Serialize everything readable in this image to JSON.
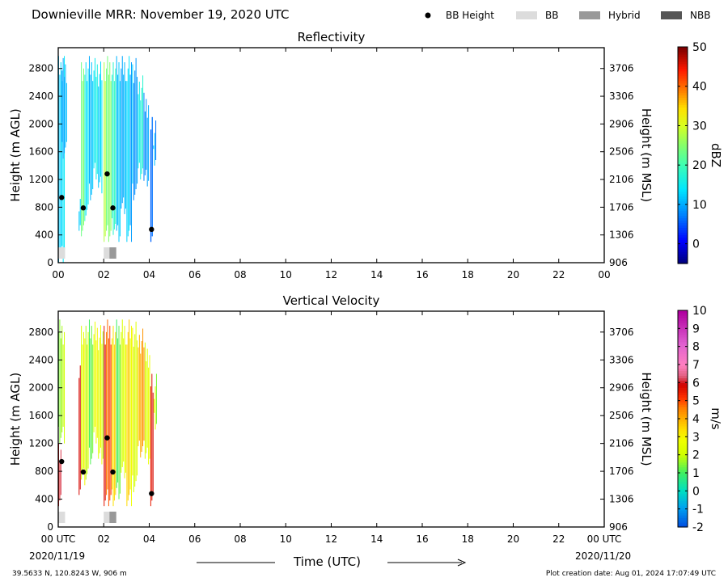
{
  "title": "Downieville MRR:  November 19, 2020 UTC",
  "legend": [
    {
      "label": "BB Height",
      "kind": "dot",
      "color": "#000000"
    },
    {
      "label": "BB",
      "kind": "box",
      "color": "#dcdcdc"
    },
    {
      "label": "Hybrid",
      "kind": "box",
      "color": "#999999"
    },
    {
      "label": "NBB",
      "kind": "box",
      "color": "#555555"
    }
  ],
  "xaxis": {
    "label": "Time (UTC)",
    "tick_labels": [
      "00",
      "02",
      "04",
      "06",
      "08",
      "10",
      "12",
      "14",
      "16",
      "18",
      "20",
      "22",
      "00"
    ],
    "bottom_tick_labels": [
      "00 UTC",
      "02",
      "04",
      "06",
      "08",
      "10",
      "12",
      "14",
      "16",
      "18",
      "20",
      "22",
      "00 UTC"
    ],
    "start_date": "2020/11/19",
    "end_date": "2020/11/20"
  },
  "left_axis": {
    "label": "Height (m AGL)",
    "ticks": [
      0,
      400,
      800,
      1200,
      1600,
      2000,
      2400,
      2800
    ]
  },
  "right_axis": {
    "label": "Height (m MSL)",
    "ticks": [
      906,
      1306,
      1706,
      2106,
      2506,
      2906,
      3306,
      3706
    ]
  },
  "footer": {
    "location": "39.5633 N, 120.8243 W, 906 m",
    "created": "Plot creation date: Aug 01, 2024 17:07:49 UTC"
  },
  "colors": {
    "bb_height": "#000000",
    "bb": "#dcdcdc",
    "hybrid": "#999999",
    "nbb": "#555555"
  },
  "chart_data": [
    {
      "type": "heatmap",
      "title": "Reflectivity",
      "xlabel": "",
      "ylabel": "Height (m AGL)",
      "y2label": "Height (m MSL)",
      "xlim": [
        0,
        24
      ],
      "ylim": [
        0,
        3100
      ],
      "colorbar": {
        "label": "dBZ",
        "ticks": [
          0,
          10,
          20,
          30,
          40,
          50
        ],
        "range": [
          -5,
          50
        ]
      },
      "bb_height": [
        {
          "x": 0.15,
          "y": 940
        },
        {
          "x": 1.1,
          "y": 790
        },
        {
          "x": 2.15,
          "y": 1280
        },
        {
          "x": 2.4,
          "y": 790
        },
        {
          "x": 4.1,
          "y": 480
        }
      ],
      "bb_types": [
        {
          "start": 0.0,
          "end": 0.3,
          "type": "BB"
        },
        {
          "start": 2.0,
          "end": 2.25,
          "type": "BB"
        },
        {
          "start": 2.25,
          "end": 2.55,
          "type": "Hybrid"
        }
      ],
      "columns": [
        {
          "t": 0.0,
          "w": 0.3,
          "top": 2980,
          "bottom": 0,
          "value": 14
        },
        {
          "t": 0.15,
          "w": 0.25,
          "top": 2950,
          "bottom": 1500,
          "value": 10
        },
        {
          "t": 0.9,
          "w": 0.1,
          "top": 1100,
          "bottom": 300,
          "value": 12
        },
        {
          "t": 1.0,
          "w": 0.15,
          "top": 2980,
          "bottom": 300,
          "value": 22
        },
        {
          "t": 1.15,
          "w": 0.2,
          "top": 2980,
          "bottom": 600,
          "value": 16
        },
        {
          "t": 1.35,
          "w": 0.2,
          "top": 2980,
          "bottom": 900,
          "value": 12
        },
        {
          "t": 1.55,
          "w": 0.2,
          "top": 2950,
          "bottom": 1200,
          "value": 15
        },
        {
          "t": 1.75,
          "w": 0.2,
          "top": 2900,
          "bottom": 1000,
          "value": 11
        },
        {
          "t": 2.0,
          "w": 0.35,
          "top": 2980,
          "bottom": 300,
          "value": 26
        },
        {
          "t": 2.35,
          "w": 0.2,
          "top": 2980,
          "bottom": 400,
          "value": 20
        },
        {
          "t": 2.55,
          "w": 0.2,
          "top": 2980,
          "bottom": 300,
          "value": 12
        },
        {
          "t": 2.75,
          "w": 0.25,
          "top": 2980,
          "bottom": 700,
          "value": 9
        },
        {
          "t": 3.0,
          "w": 0.25,
          "top": 2980,
          "bottom": 300,
          "value": 11
        },
        {
          "t": 3.25,
          "w": 0.25,
          "top": 2950,
          "bottom": 900,
          "value": 10
        },
        {
          "t": 3.5,
          "w": 0.25,
          "top": 2700,
          "bottom": 1200,
          "value": 17
        },
        {
          "t": 3.75,
          "w": 0.25,
          "top": 2450,
          "bottom": 1100,
          "value": 8
        },
        {
          "t": 4.05,
          "w": 0.12,
          "top": 2100,
          "bottom": 300,
          "value": 5
        },
        {
          "t": 4.17,
          "w": 0.15,
          "top": 2050,
          "bottom": 1400,
          "value": 9
        }
      ]
    },
    {
      "type": "heatmap",
      "title": "Vertical Velocity",
      "xlabel": "",
      "ylabel": "Height (m AGL)",
      "y2label": "Height (m MSL)",
      "xlim": [
        0,
        24
      ],
      "ylim": [
        0,
        3100
      ],
      "colorbar": {
        "label": "m/s",
        "ticks": [
          -2,
          -1,
          0,
          1,
          2,
          3,
          4,
          5,
          6,
          7,
          8,
          9,
          10
        ],
        "range": [
          -2,
          10
        ]
      },
      "bb_height": [
        {
          "x": 0.15,
          "y": 940
        },
        {
          "x": 1.1,
          "y": 790
        },
        {
          "x": 2.15,
          "y": 1280
        },
        {
          "x": 2.4,
          "y": 790
        },
        {
          "x": 4.1,
          "y": 480
        }
      ],
      "bb_types": [
        {
          "start": 0.0,
          "end": 0.3,
          "type": "BB"
        },
        {
          "start": 2.0,
          "end": 2.25,
          "type": "BB"
        },
        {
          "start": 2.25,
          "end": 2.55,
          "type": "Hybrid"
        }
      ],
      "columns": [
        {
          "t": 0.0,
          "w": 0.15,
          "top": 1200,
          "bottom": 300,
          "value": 6.5
        },
        {
          "t": 0.0,
          "w": 0.3,
          "top": 2980,
          "bottom": 1200,
          "value": 1.6
        },
        {
          "t": 0.9,
          "w": 0.1,
          "top": 2500,
          "bottom": 300,
          "value": 5.8
        },
        {
          "t": 1.0,
          "w": 0.15,
          "top": 2980,
          "bottom": 600,
          "value": 2.0
        },
        {
          "t": 1.15,
          "w": 0.2,
          "top": 2980,
          "bottom": 600,
          "value": 2.4
        },
        {
          "t": 1.35,
          "w": 0.2,
          "top": 2980,
          "bottom": 900,
          "value": 1.4
        },
        {
          "t": 1.55,
          "w": 0.2,
          "top": 2950,
          "bottom": 1200,
          "value": 2.7
        },
        {
          "t": 1.75,
          "w": 0.25,
          "top": 2900,
          "bottom": 900,
          "value": 2.2
        },
        {
          "t": 2.0,
          "w": 0.35,
          "top": 2980,
          "bottom": 300,
          "value": 5.2
        },
        {
          "t": 2.35,
          "w": 0.2,
          "top": 2980,
          "bottom": 300,
          "value": 3.8
        },
        {
          "t": 2.55,
          "w": 0.2,
          "top": 2980,
          "bottom": 400,
          "value": 1.2
        },
        {
          "t": 2.75,
          "w": 0.25,
          "top": 2980,
          "bottom": 700,
          "value": 2.1
        },
        {
          "t": 3.0,
          "w": 0.25,
          "top": 2980,
          "bottom": 300,
          "value": 3.2
        },
        {
          "t": 3.25,
          "w": 0.25,
          "top": 2950,
          "bottom": 500,
          "value": 2.6
        },
        {
          "t": 3.5,
          "w": 0.3,
          "top": 2850,
          "bottom": 1000,
          "value": 4.2
        },
        {
          "t": 3.8,
          "w": 0.25,
          "top": 2650,
          "bottom": 900,
          "value": 2.3
        },
        {
          "t": 4.05,
          "w": 0.15,
          "top": 2200,
          "bottom": 300,
          "value": 5.4
        },
        {
          "t": 4.2,
          "w": 0.15,
          "top": 2200,
          "bottom": 1400,
          "value": 2.0
        }
      ]
    }
  ]
}
